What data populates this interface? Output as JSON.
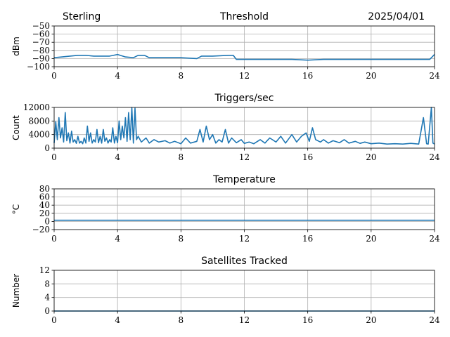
{
  "header": {
    "station": "Sterling",
    "date": "2025/04/01"
  },
  "colors": {
    "series": "#1f77b4",
    "grid": "#b0b0b0",
    "axis": "#000000"
  },
  "chart_data": [
    {
      "type": "line",
      "title": "Threshold",
      "ylabel": "dBm",
      "xlim": [
        0,
        24
      ],
      "ylim": [
        -100,
        -50
      ],
      "xticks": [
        0,
        4,
        8,
        12,
        16,
        20,
        24
      ],
      "yticks": [
        -100,
        -90,
        -80,
        -70,
        -60,
        -50
      ],
      "ytick_labels": [
        "−100",
        "−90",
        "−80",
        "−70",
        "−60",
        "−50"
      ],
      "grid": true,
      "series": [
        {
          "x": [
            0,
            0.5,
            1,
            1.5,
            2,
            2.5,
            3,
            3.5,
            4,
            4.5,
            5,
            5.3,
            5.7,
            6,
            6.5,
            7,
            8,
            9,
            9.3,
            10,
            11,
            11.3,
            11.5,
            12,
            13,
            14,
            15,
            16,
            17,
            18,
            19,
            20,
            21,
            22,
            23,
            23.7,
            24
          ],
          "y": [
            -89,
            -88,
            -87,
            -86,
            -86,
            -87,
            -87,
            -87,
            -85,
            -88,
            -89,
            -86,
            -86,
            -89,
            -89,
            -89,
            -89,
            -90,
            -87,
            -87,
            -86,
            -86,
            -91,
            -91,
            -91,
            -91,
            -91,
            -92,
            -91,
            -91,
            -91,
            -91,
            -91,
            -91,
            -91,
            -91,
            -85
          ]
        }
      ]
    },
    {
      "type": "line",
      "title": "Triggers/sec",
      "ylabel": "Count",
      "xlim": [
        0,
        24
      ],
      "ylim": [
        0,
        12000
      ],
      "xticks": [
        0,
        4,
        8,
        12,
        16,
        20,
        24
      ],
      "yticks": [
        0,
        4000,
        8000,
        12000
      ],
      "ytick_labels": [
        "0",
        "4000",
        "8000",
        "12000"
      ],
      "grid": true,
      "series": [
        {
          "x": [
            0,
            0.1,
            0.2,
            0.3,
            0.4,
            0.5,
            0.6,
            0.7,
            0.8,
            0.9,
            1.0,
            1.1,
            1.2,
            1.3,
            1.4,
            1.5,
            1.6,
            1.7,
            1.8,
            1.9,
            2.0,
            2.1,
            2.2,
            2.3,
            2.4,
            2.5,
            2.6,
            2.7,
            2.8,
            2.9,
            3.0,
            3.1,
            3.2,
            3.3,
            3.4,
            3.5,
            3.6,
            3.7,
            3.8,
            3.9,
            4.0,
            4.1,
            4.2,
            4.3,
            4.4,
            4.5,
            4.6,
            4.7,
            4.8,
            4.9,
            5.0,
            5.1,
            5.2,
            5.3,
            5.5,
            5.8,
            6.0,
            6.3,
            6.6,
            7.0,
            7.3,
            7.6,
            8.0,
            8.3,
            8.6,
            9.0,
            9.2,
            9.4,
            9.6,
            9.8,
            10.0,
            10.2,
            10.4,
            10.6,
            10.8,
            11.0,
            11.2,
            11.5,
            11.8,
            12.0,
            12.3,
            12.6,
            13.0,
            13.3,
            13.6,
            14.0,
            14.3,
            14.6,
            15.0,
            15.3,
            15.6,
            15.9,
            16.1,
            16.3,
            16.5,
            16.8,
            17.0,
            17.3,
            17.6,
            18.0,
            18.3,
            18.6,
            19.0,
            19.3,
            19.6,
            20.0,
            20.5,
            21.0,
            21.5,
            22.0,
            22.5,
            23.0,
            23.3,
            23.5,
            23.6,
            23.8,
            23.9,
            24.0
          ],
          "y": [
            1500,
            7800,
            2500,
            9000,
            3000,
            6000,
            1800,
            10500,
            2200,
            4500,
            1500,
            5000,
            1800,
            2500,
            1400,
            3500,
            1500,
            2000,
            1300,
            3000,
            1500,
            6500,
            2000,
            4500,
            1500,
            2500,
            1800,
            5500,
            1600,
            3500,
            1500,
            5500,
            2000,
            3000,
            1500,
            2500,
            1800,
            6000,
            1500,
            3500,
            1600,
            8000,
            2500,
            6500,
            3000,
            9000,
            2000,
            10500,
            2500,
            12000,
            1500,
            11800,
            2500,
            3500,
            1800,
            3000,
            1500,
            2500,
            1800,
            2200,
            1500,
            2000,
            1300,
            3000,
            1500,
            2000,
            5500,
            1800,
            6500,
            2500,
            4000,
            1500,
            2500,
            1800,
            5500,
            1500,
            3000,
            1600,
            2500,
            1400,
            1800,
            1300,
            2500,
            1500,
            3000,
            1800,
            3500,
            1500,
            4000,
            1800,
            3500,
            4500,
            2000,
            6000,
            2500,
            1800,
            2500,
            1500,
            2200,
            1600,
            2500,
            1500,
            2000,
            1400,
            1800,
            1300,
            1500,
            1200,
            1300,
            1200,
            1400,
            1200,
            9000,
            1300,
            1200,
            12000,
            1500,
            1200
          ]
        }
      ]
    },
    {
      "type": "line",
      "title": "Temperature",
      "ylabel": "°C",
      "xlim": [
        0,
        24
      ],
      "ylim": [
        -20,
        80
      ],
      "xticks": [
        0,
        4,
        8,
        12,
        16,
        20,
        24
      ],
      "yticks": [
        -20,
        0,
        20,
        40,
        60,
        80
      ],
      "ytick_labels": [
        "−20",
        "0",
        "20",
        "40",
        "60",
        "80"
      ],
      "grid": true,
      "series": [
        {
          "x": [
            0,
            24
          ],
          "y": [
            3,
            3
          ]
        }
      ]
    },
    {
      "type": "line",
      "title": "Satellites Tracked",
      "ylabel": "Number",
      "xlim": [
        0,
        24
      ],
      "ylim": [
        0,
        12
      ],
      "xticks": [
        0,
        4,
        8,
        12,
        16,
        20,
        24
      ],
      "yticks": [
        0,
        4,
        8,
        12
      ],
      "ytick_labels": [
        "0",
        "4",
        "8",
        "12"
      ],
      "grid": true,
      "series": [
        {
          "x": [
            0,
            24
          ],
          "y": [
            0,
            0
          ]
        }
      ]
    }
  ]
}
